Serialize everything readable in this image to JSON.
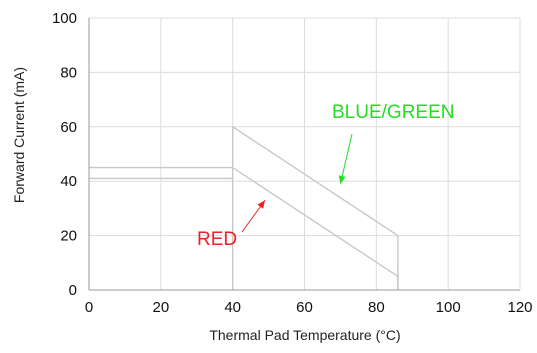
{
  "chart_data": {
    "type": "line",
    "title": "",
    "xlabel": "Thermal Pad Temperature (°C)",
    "ylabel": "Forward Current (mA)",
    "xlim": [
      0,
      120
    ],
    "ylim": [
      0,
      100
    ],
    "xticks": [
      0,
      20,
      40,
      60,
      80,
      100,
      120
    ],
    "yticks": [
      0,
      20,
      40,
      60,
      80,
      100
    ],
    "grid": true,
    "legend": "none",
    "series": [
      {
        "name": "BLUE/GREEN",
        "color": "#c8c8c8",
        "x": [
          40,
          40,
          86,
          86
        ],
        "y": [
          0,
          60,
          20,
          0
        ]
      },
      {
        "name": "RED",
        "color": "#c8c8c8",
        "x": [
          0,
          40,
          86,
          86
        ],
        "y": [
          45,
          45,
          5,
          0
        ]
      },
      {
        "name": "",
        "color": "#c8c8c8",
        "x": [
          0,
          40
        ],
        "y": [
          41,
          41
        ]
      }
    ],
    "annotations": [
      {
        "text": "BLUE/GREEN",
        "color": "#22dd22",
        "arrow_to": {
          "x": 70,
          "y": 39
        }
      },
      {
        "text": "RED",
        "color": "#ee2222",
        "arrow_to": {
          "x": 49,
          "y": 33
        }
      }
    ]
  }
}
